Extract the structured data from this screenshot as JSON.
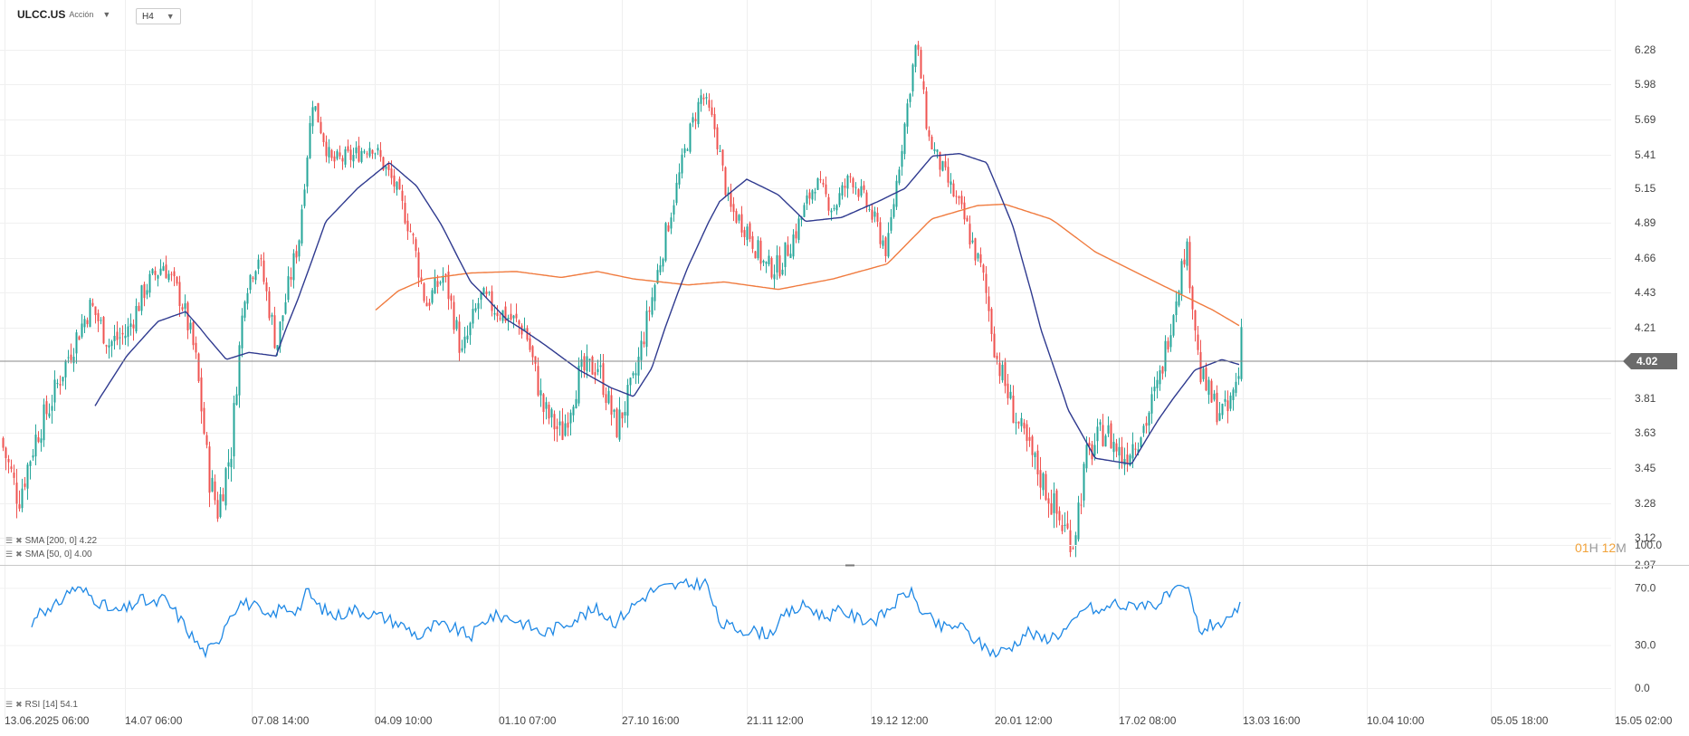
{
  "header": {
    "symbol": "ULCC.US",
    "instrument_type": "Acción",
    "timeframe": "H4"
  },
  "indicators": [
    {
      "label": "SMA [200, 0] 4.22",
      "color": "#f07b3f"
    },
    {
      "label": "SMA [50, 0] 4.00",
      "color": "#2f3a8f"
    },
    {
      "label": "RSI [14] 54.1",
      "color": "#1e88e5"
    }
  ],
  "current_price_label": "4.02",
  "countdown": {
    "h_value": "01",
    "h_unit": "H",
    "m_value": "12",
    "m_unit": "M"
  },
  "colors": {
    "up": "#26a69a",
    "down": "#ef5350",
    "sma200": "#f07b3f",
    "sma50": "#2f3a8f",
    "rsi": "#1e88e5",
    "price_line": "#888888",
    "price_tag": "#6b6b6b"
  },
  "chart_data": [
    {
      "type": "candlestick",
      "title": "ULCC.US",
      "y_ticks": [
        "6.28",
        "5.98",
        "5.69",
        "5.41",
        "5.15",
        "4.89",
        "4.66",
        "4.43",
        "4.21",
        "3.81",
        "3.63",
        "3.45",
        "3.28",
        "3.12",
        "2.97"
      ],
      "y_tick_values": [
        6.28,
        5.98,
        5.69,
        5.41,
        5.15,
        4.89,
        4.66,
        4.43,
        4.21,
        3.81,
        3.63,
        3.45,
        3.28,
        3.12,
        2.97
      ],
      "ylim": [
        2.97,
        6.47
      ],
      "current_price": 4.02,
      "x_labels": [
        "13.06.2025 06:00",
        "14.07 06:00",
        "07.08 14:00",
        "04.09 10:00",
        "01.10 07:00",
        "27.10 16:00",
        "21.11 12:00",
        "19.12 12:00",
        "20.01 12:00",
        "17.02 08:00",
        "13.03 16:00",
        "10.04 10:00",
        "05.05 18:00",
        "15.05 02:00"
      ],
      "close_anchors": [
        [
          0,
          3.6
        ],
        [
          20,
          3.3
        ],
        [
          40,
          3.62
        ],
        [
          55,
          3.78
        ],
        [
          75,
          4.05
        ],
        [
          100,
          4.35
        ],
        [
          120,
          4.12
        ],
        [
          140,
          4.18
        ],
        [
          160,
          4.46
        ],
        [
          180,
          4.62
        ],
        [
          200,
          4.38
        ],
        [
          215,
          4.06
        ],
        [
          230,
          3.42
        ],
        [
          240,
          3.25
        ],
        [
          255,
          3.55
        ],
        [
          270,
          4.45
        ],
        [
          285,
          4.68
        ],
        [
          305,
          4.1
        ],
        [
          330,
          4.8
        ],
        [
          345,
          5.85
        ],
        [
          365,
          5.35
        ],
        [
          390,
          5.4
        ],
        [
          410,
          5.5
        ],
        [
          435,
          5.18
        ],
        [
          455,
          4.8
        ],
        [
          470,
          4.35
        ],
        [
          490,
          4.55
        ],
        [
          510,
          4.05
        ],
        [
          530,
          4.4
        ],
        [
          555,
          4.3
        ],
        [
          580,
          4.2
        ],
        [
          600,
          3.75
        ],
        [
          620,
          3.62
        ],
        [
          640,
          3.95
        ],
        [
          660,
          4.0
        ],
        [
          680,
          3.65
        ],
        [
          700,
          3.9
        ],
        [
          720,
          4.4
        ],
        [
          740,
          4.95
        ],
        [
          760,
          5.55
        ],
        [
          775,
          5.9
        ],
        [
          790,
          5.6
        ],
        [
          805,
          5.0
        ],
        [
          825,
          4.85
        ],
        [
          845,
          4.6
        ],
        [
          860,
          4.6
        ],
        [
          880,
          4.85
        ],
        [
          900,
          5.2
        ],
        [
          920,
          5.0
        ],
        [
          940,
          5.25
        ],
        [
          960,
          4.98
        ],
        [
          980,
          4.7
        ],
        [
          1000,
          5.7
        ],
        [
          1012,
          6.35
        ],
        [
          1025,
          5.55
        ],
        [
          1040,
          5.3
        ],
        [
          1060,
          5.0
        ],
        [
          1085,
          4.55
        ],
        [
          1100,
          4.05
        ],
        [
          1115,
          3.8
        ],
        [
          1130,
          3.6
        ],
        [
          1150,
          3.4
        ],
        [
          1170,
          3.2
        ],
        [
          1185,
          3.1
        ],
        [
          1200,
          3.5
        ],
        [
          1220,
          3.65
        ],
        [
          1240,
          3.5
        ],
        [
          1265,
          3.68
        ],
        [
          1280,
          3.9
        ],
        [
          1295,
          4.3
        ],
        [
          1310,
          4.75
        ],
        [
          1325,
          3.95
        ],
        [
          1340,
          3.78
        ],
        [
          1355,
          3.72
        ],
        [
          1368,
          3.95
        ],
        [
          1372,
          4.3
        ]
      ],
      "sma200_anchors": [
        [
          415,
          4.32
        ],
        [
          440,
          4.44
        ],
        [
          470,
          4.52
        ],
        [
          520,
          4.56
        ],
        [
          570,
          4.57
        ],
        [
          620,
          4.53
        ],
        [
          660,
          4.57
        ],
        [
          700,
          4.52
        ],
        [
          760,
          4.48
        ],
        [
          800,
          4.5
        ],
        [
          860,
          4.45
        ],
        [
          920,
          4.52
        ],
        [
          980,
          4.62
        ],
        [
          1030,
          4.92
        ],
        [
          1080,
          5.02
        ],
        [
          1110,
          5.03
        ],
        [
          1160,
          4.92
        ],
        [
          1210,
          4.7
        ],
        [
          1260,
          4.55
        ],
        [
          1300,
          4.43
        ],
        [
          1340,
          4.32
        ],
        [
          1370,
          4.22
        ]
      ],
      "sma50_anchors": [
        [
          105,
          3.77
        ],
        [
          140,
          4.05
        ],
        [
          175,
          4.25
        ],
        [
          205,
          4.31
        ],
        [
          230,
          4.15
        ],
        [
          250,
          4.03
        ],
        [
          275,
          4.07
        ],
        [
          305,
          4.05
        ],
        [
          330,
          4.4
        ],
        [
          360,
          4.9
        ],
        [
          395,
          5.15
        ],
        [
          430,
          5.35
        ],
        [
          460,
          5.17
        ],
        [
          490,
          4.85
        ],
        [
          520,
          4.5
        ],
        [
          560,
          4.26
        ],
        [
          600,
          4.12
        ],
        [
          640,
          3.97
        ],
        [
          675,
          3.87
        ],
        [
          700,
          3.82
        ],
        [
          720,
          3.98
        ],
        [
          760,
          4.6
        ],
        [
          795,
          5.05
        ],
        [
          825,
          5.22
        ],
        [
          860,
          5.1
        ],
        [
          890,
          4.9
        ],
        [
          930,
          4.93
        ],
        [
          970,
          5.05
        ],
        [
          1000,
          5.15
        ],
        [
          1030,
          5.4
        ],
        [
          1060,
          5.42
        ],
        [
          1090,
          5.35
        ],
        [
          1120,
          4.85
        ],
        [
          1150,
          4.2
        ],
        [
          1180,
          3.75
        ],
        [
          1210,
          3.5
        ],
        [
          1250,
          3.47
        ],
        [
          1280,
          3.7
        ],
        [
          1320,
          3.97
        ],
        [
          1350,
          4.03
        ],
        [
          1370,
          4.0
        ]
      ]
    },
    {
      "type": "line",
      "title": "RSI [14] 54.1",
      "y_ticks": [
        "100.0",
        "70.0",
        "30.0",
        "0.0"
      ],
      "y_tick_values": [
        100,
        70,
        30,
        0
      ],
      "ylim": [
        0,
        100
      ],
      "current_value": 54.1,
      "anchors": [
        [
          35,
          43
        ],
        [
          45,
          58
        ],
        [
          55,
          52
        ],
        [
          65,
          60
        ],
        [
          80,
          70
        ],
        [
          95,
          67
        ],
        [
          110,
          60
        ],
        [
          125,
          53
        ],
        [
          140,
          55
        ],
        [
          155,
          62
        ],
        [
          170,
          58
        ],
        [
          180,
          63
        ],
        [
          195,
          52
        ],
        [
          210,
          38
        ],
        [
          225,
          25
        ],
        [
          240,
          30
        ],
        [
          250,
          48
        ],
        [
          265,
          60
        ],
        [
          280,
          58
        ],
        [
          295,
          48
        ],
        [
          310,
          56
        ],
        [
          330,
          55
        ],
        [
          340,
          68
        ],
        [
          350,
          58
        ],
        [
          370,
          50
        ],
        [
          390,
          55
        ],
        [
          410,
          52
        ],
        [
          430,
          48
        ],
        [
          450,
          42
        ],
        [
          465,
          35
        ],
        [
          480,
          44
        ],
        [
          500,
          42
        ],
        [
          520,
          36
        ],
        [
          540,
          50
        ],
        [
          560,
          50
        ],
        [
          580,
          45
        ],
        [
          600,
          38
        ],
        [
          620,
          44
        ],
        [
          640,
          50
        ],
        [
          660,
          55
        ],
        [
          680,
          46
        ],
        [
          700,
          58
        ],
        [
          720,
          68
        ],
        [
          740,
          71
        ],
        [
          760,
          72
        ],
        [
          780,
          74
        ],
        [
          795,
          45
        ],
        [
          810,
          42
        ],
        [
          830,
          40
        ],
        [
          850,
          38
        ],
        [
          870,
          52
        ],
        [
          890,
          58
        ],
        [
          910,
          50
        ],
        [
          930,
          54
        ],
        [
          950,
          48
        ],
        [
          970,
          48
        ],
        [
          990,
          60
        ],
        [
          1005,
          68
        ],
        [
          1020,
          52
        ],
        [
          1040,
          42
        ],
        [
          1060,
          44
        ],
        [
          1080,
          32
        ],
        [
          1100,
          24
        ],
        [
          1120,
          30
        ],
        [
          1135,
          40
        ],
        [
          1150,
          34
        ],
        [
          1170,
          38
        ],
        [
          1185,
          44
        ],
        [
          1200,
          58
        ],
        [
          1215,
          52
        ],
        [
          1230,
          60
        ],
        [
          1245,
          56
        ],
        [
          1260,
          60
        ],
        [
          1275,
          58
        ],
        [
          1295,
          66
        ],
        [
          1312,
          70
        ],
        [
          1325,
          40
        ],
        [
          1345,
          46
        ],
        [
          1360,
          45
        ],
        [
          1368,
          58
        ],
        [
          1372,
          54
        ]
      ]
    }
  ]
}
